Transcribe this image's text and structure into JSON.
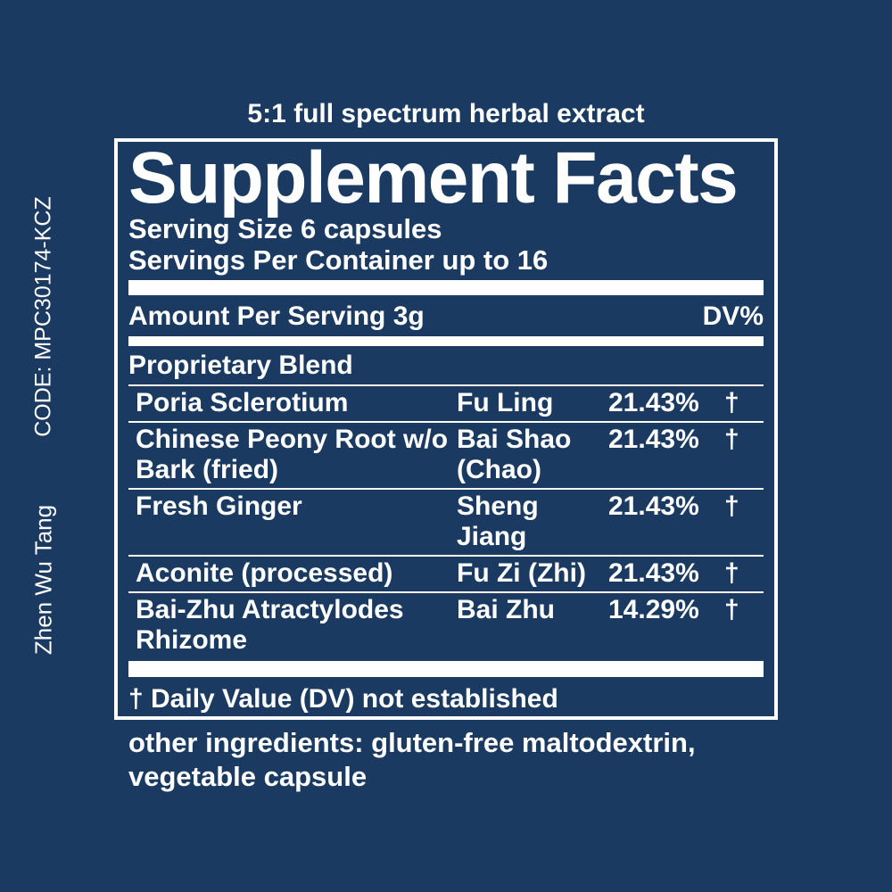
{
  "colors": {
    "background": "#1a3a62",
    "foreground": "#ffffff"
  },
  "top_label": "5:1 full spectrum herbal extract",
  "side": {
    "code": "CODE: MPC30174-KCZ",
    "product_name": "Zhen Wu Tang"
  },
  "panel": {
    "title": "Supplement Facts",
    "serving_size": "Serving Size 6 capsules",
    "servings_per_container": "Servings Per Container up to 16",
    "amount_header": "Amount Per Serving 3g",
    "dv_header": "DV%",
    "blend_title": "Proprietary Blend",
    "rows": [
      {
        "name": "Poria Sclerotium",
        "pinyin": "Fu Ling",
        "percent": "21.43%",
        "dagger": "†"
      },
      {
        "name": "Chinese Peony Root w/o Bark (fried)",
        "pinyin": "Bai Shao (Chao)",
        "percent": "21.43%",
        "dagger": "†"
      },
      {
        "name": "Fresh Ginger",
        "pinyin": "Sheng Jiang",
        "percent": "21.43%",
        "dagger": "†"
      },
      {
        "name": "Aconite (processed)",
        "pinyin": "Fu Zi (Zhi)",
        "percent": "21.43%",
        "dagger": "†"
      },
      {
        "name": "Bai-Zhu Atractylodes Rhizome",
        "pinyin": "Bai Zhu",
        "percent": "14.29%",
        "dagger": "†"
      }
    ],
    "footnote": "† Daily Value (DV) not established"
  },
  "other_ingredients": "other ingredients: gluten-free maltodextrin, vegetable capsule"
}
